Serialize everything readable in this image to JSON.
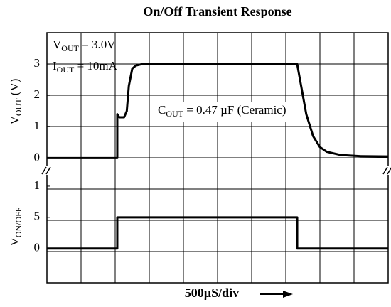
{
  "chart_data": [
    {
      "type": "line",
      "title": "On/Off Transient Response",
      "ylabel": {
        "base": "V",
        "sub": "OUT",
        "rest": " (V)"
      },
      "annotations": [
        {
          "base": "V",
          "sub": "OUT",
          "rest": " = 3.0V"
        },
        {
          "base": "I",
          "sub": "OUT",
          "rest": " = 10mA"
        },
        {
          "base": "C",
          "sub": "OUT",
          "rest": " = 0.47 µF (Ceramic)"
        }
      ],
      "xlim": [
        0,
        5000
      ],
      "ylim": [
        -0.4,
        4.0
      ],
      "yticks": [
        0,
        1,
        2,
        3
      ],
      "series": [
        {
          "color": "#000000",
          "x": [
            0,
            1031,
            1031,
            1060,
            1130,
            1170,
            1200,
            1250,
            1300,
            1400,
            3667,
            3700,
            3750,
            3800,
            3900,
            4000,
            4100,
            4300,
            4600,
            5000
          ],
          "values": [
            0,
            0,
            1.4,
            1.3,
            1.3,
            1.5,
            2.3,
            2.85,
            2.95,
            3.0,
            3.0,
            2.6,
            2.0,
            1.4,
            0.7,
            0.35,
            0.2,
            0.1,
            0.06,
            0.05
          ]
        }
      ]
    },
    {
      "type": "line",
      "ylabel": {
        "base": "V",
        "sub": "ON/OFF"
      },
      "xlabel": "500µS/div",
      "xlim": [
        0,
        5000
      ],
      "ylim": [
        -5.5,
        12.5
      ],
      "yticks": [
        0,
        5,
        {
          "value": 10,
          "label": "1"
        }
      ],
      "series": [
        {
          "color": "#000000",
          "x": [
            0,
            1031,
            1031,
            3667,
            3667,
            5000
          ],
          "values": [
            0,
            0,
            5,
            5,
            0,
            0
          ]
        }
      ]
    }
  ]
}
